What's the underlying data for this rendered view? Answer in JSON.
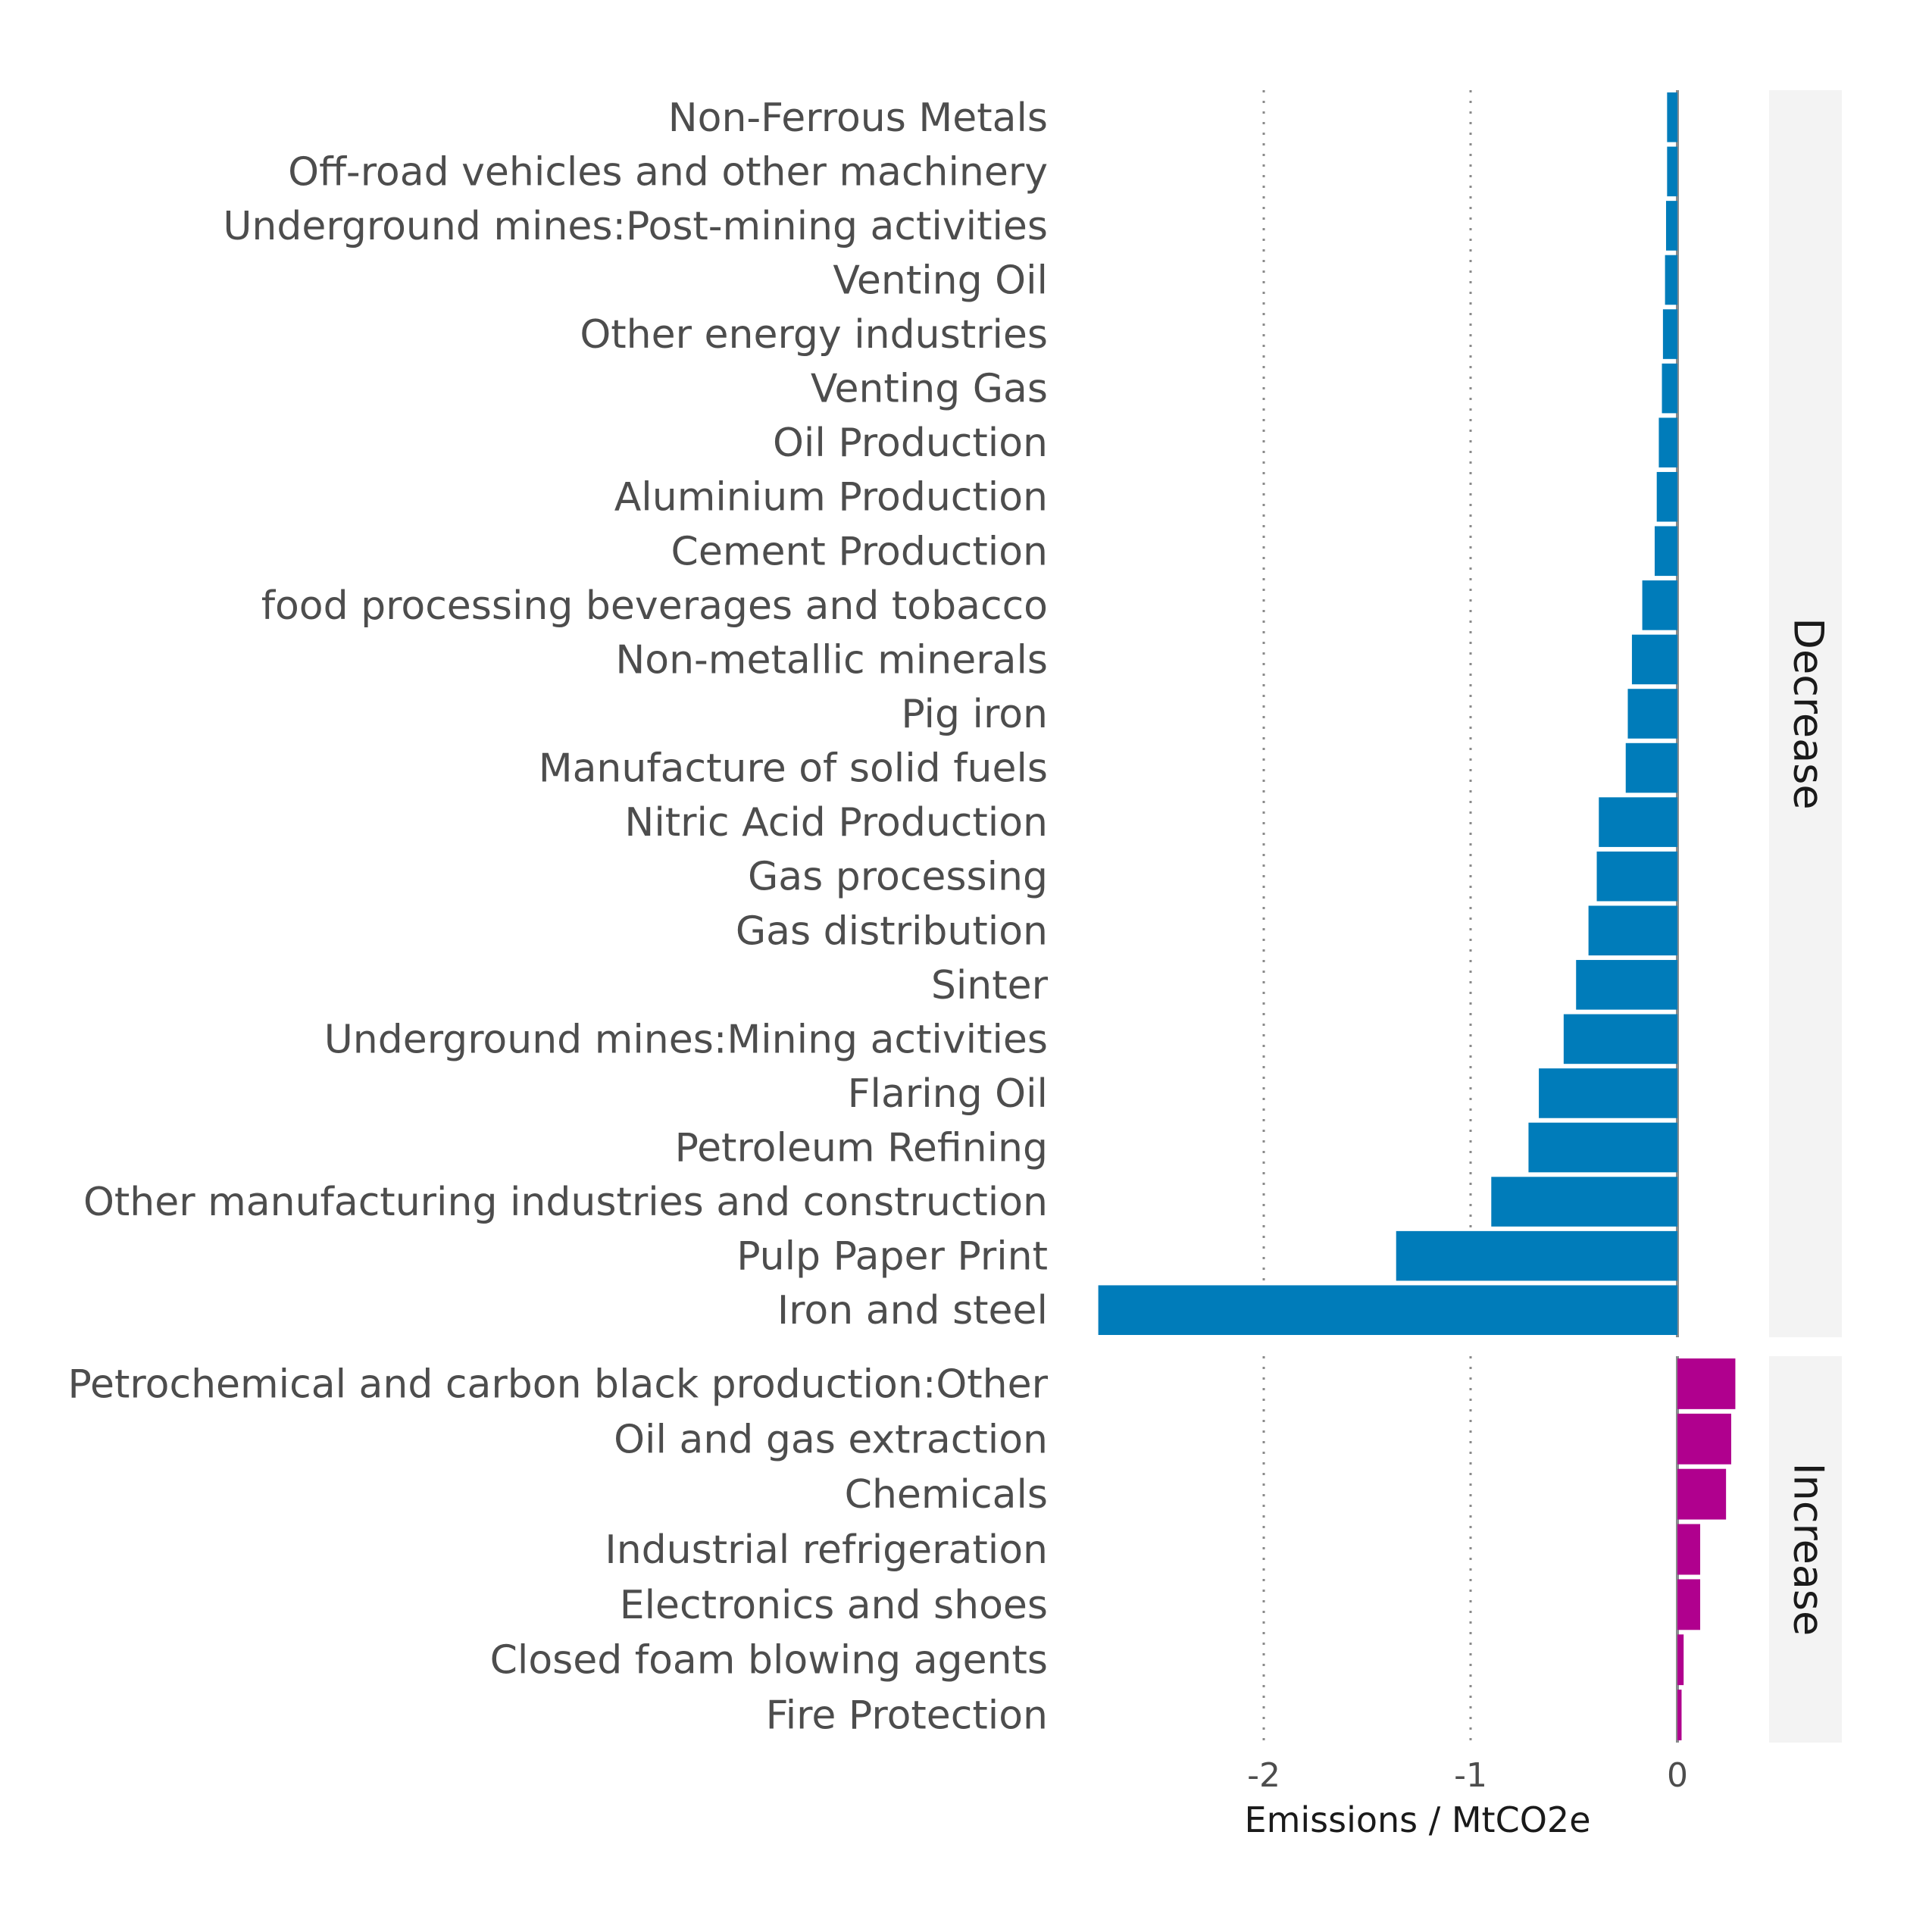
{
  "chart_data": {
    "type": "bar",
    "orientation": "horizontal",
    "xlabel": "Emissions / MtCO2e",
    "ylabel": "",
    "xlim": [
      -2.85,
      0.35
    ],
    "xticks": [
      -2,
      -1,
      0
    ],
    "xtick_labels": [
      "-2",
      "-1",
      "0"
    ],
    "grid": "vertical dotted at major ticks",
    "facets": [
      {
        "name": "Decrease",
        "color": "#007CBA",
        "categories": [
          "Non-Ferrous Metals",
          "Off-road vehicles and other machinery",
          "Underground mines:Post-mining activities",
          "Venting Oil",
          "Other energy industries",
          "Venting Gas",
          "Oil Production",
          "Aluminium Production",
          "Cement Production",
          "food processing beverages and tobacco",
          "Non-metallic minerals",
          "Pig iron",
          "Manufacture of solid fuels",
          "Nitric Acid Production",
          "Gas processing",
          "Gas distribution",
          "Sinter",
          "Underground mines:Mining activities",
          "Flaring Oil",
          "Petroleum Refining",
          "Other manufacturing industries and construction",
          "Pulp Paper Print",
          "Iron and steel"
        ],
        "values": [
          -0.05,
          -0.05,
          -0.055,
          -0.06,
          -0.07,
          -0.075,
          -0.09,
          -0.1,
          -0.11,
          -0.17,
          -0.22,
          -0.24,
          -0.25,
          -0.38,
          -0.39,
          -0.43,
          -0.49,
          -0.55,
          -0.67,
          -0.72,
          -0.9,
          -1.36,
          -2.8
        ]
      },
      {
        "name": "Increase",
        "color": "#B0008E",
        "categories": [
          "Petrochemical and carbon black production:Other",
          "Oil and gas extraction",
          "Chemicals",
          "Industrial refrigeration",
          "Electronics and shoes",
          "Closed foam blowing agents",
          "Fire Protection"
        ],
        "values": [
          0.28,
          0.26,
          0.235,
          0.11,
          0.11,
          0.03,
          0.02
        ]
      }
    ]
  }
}
